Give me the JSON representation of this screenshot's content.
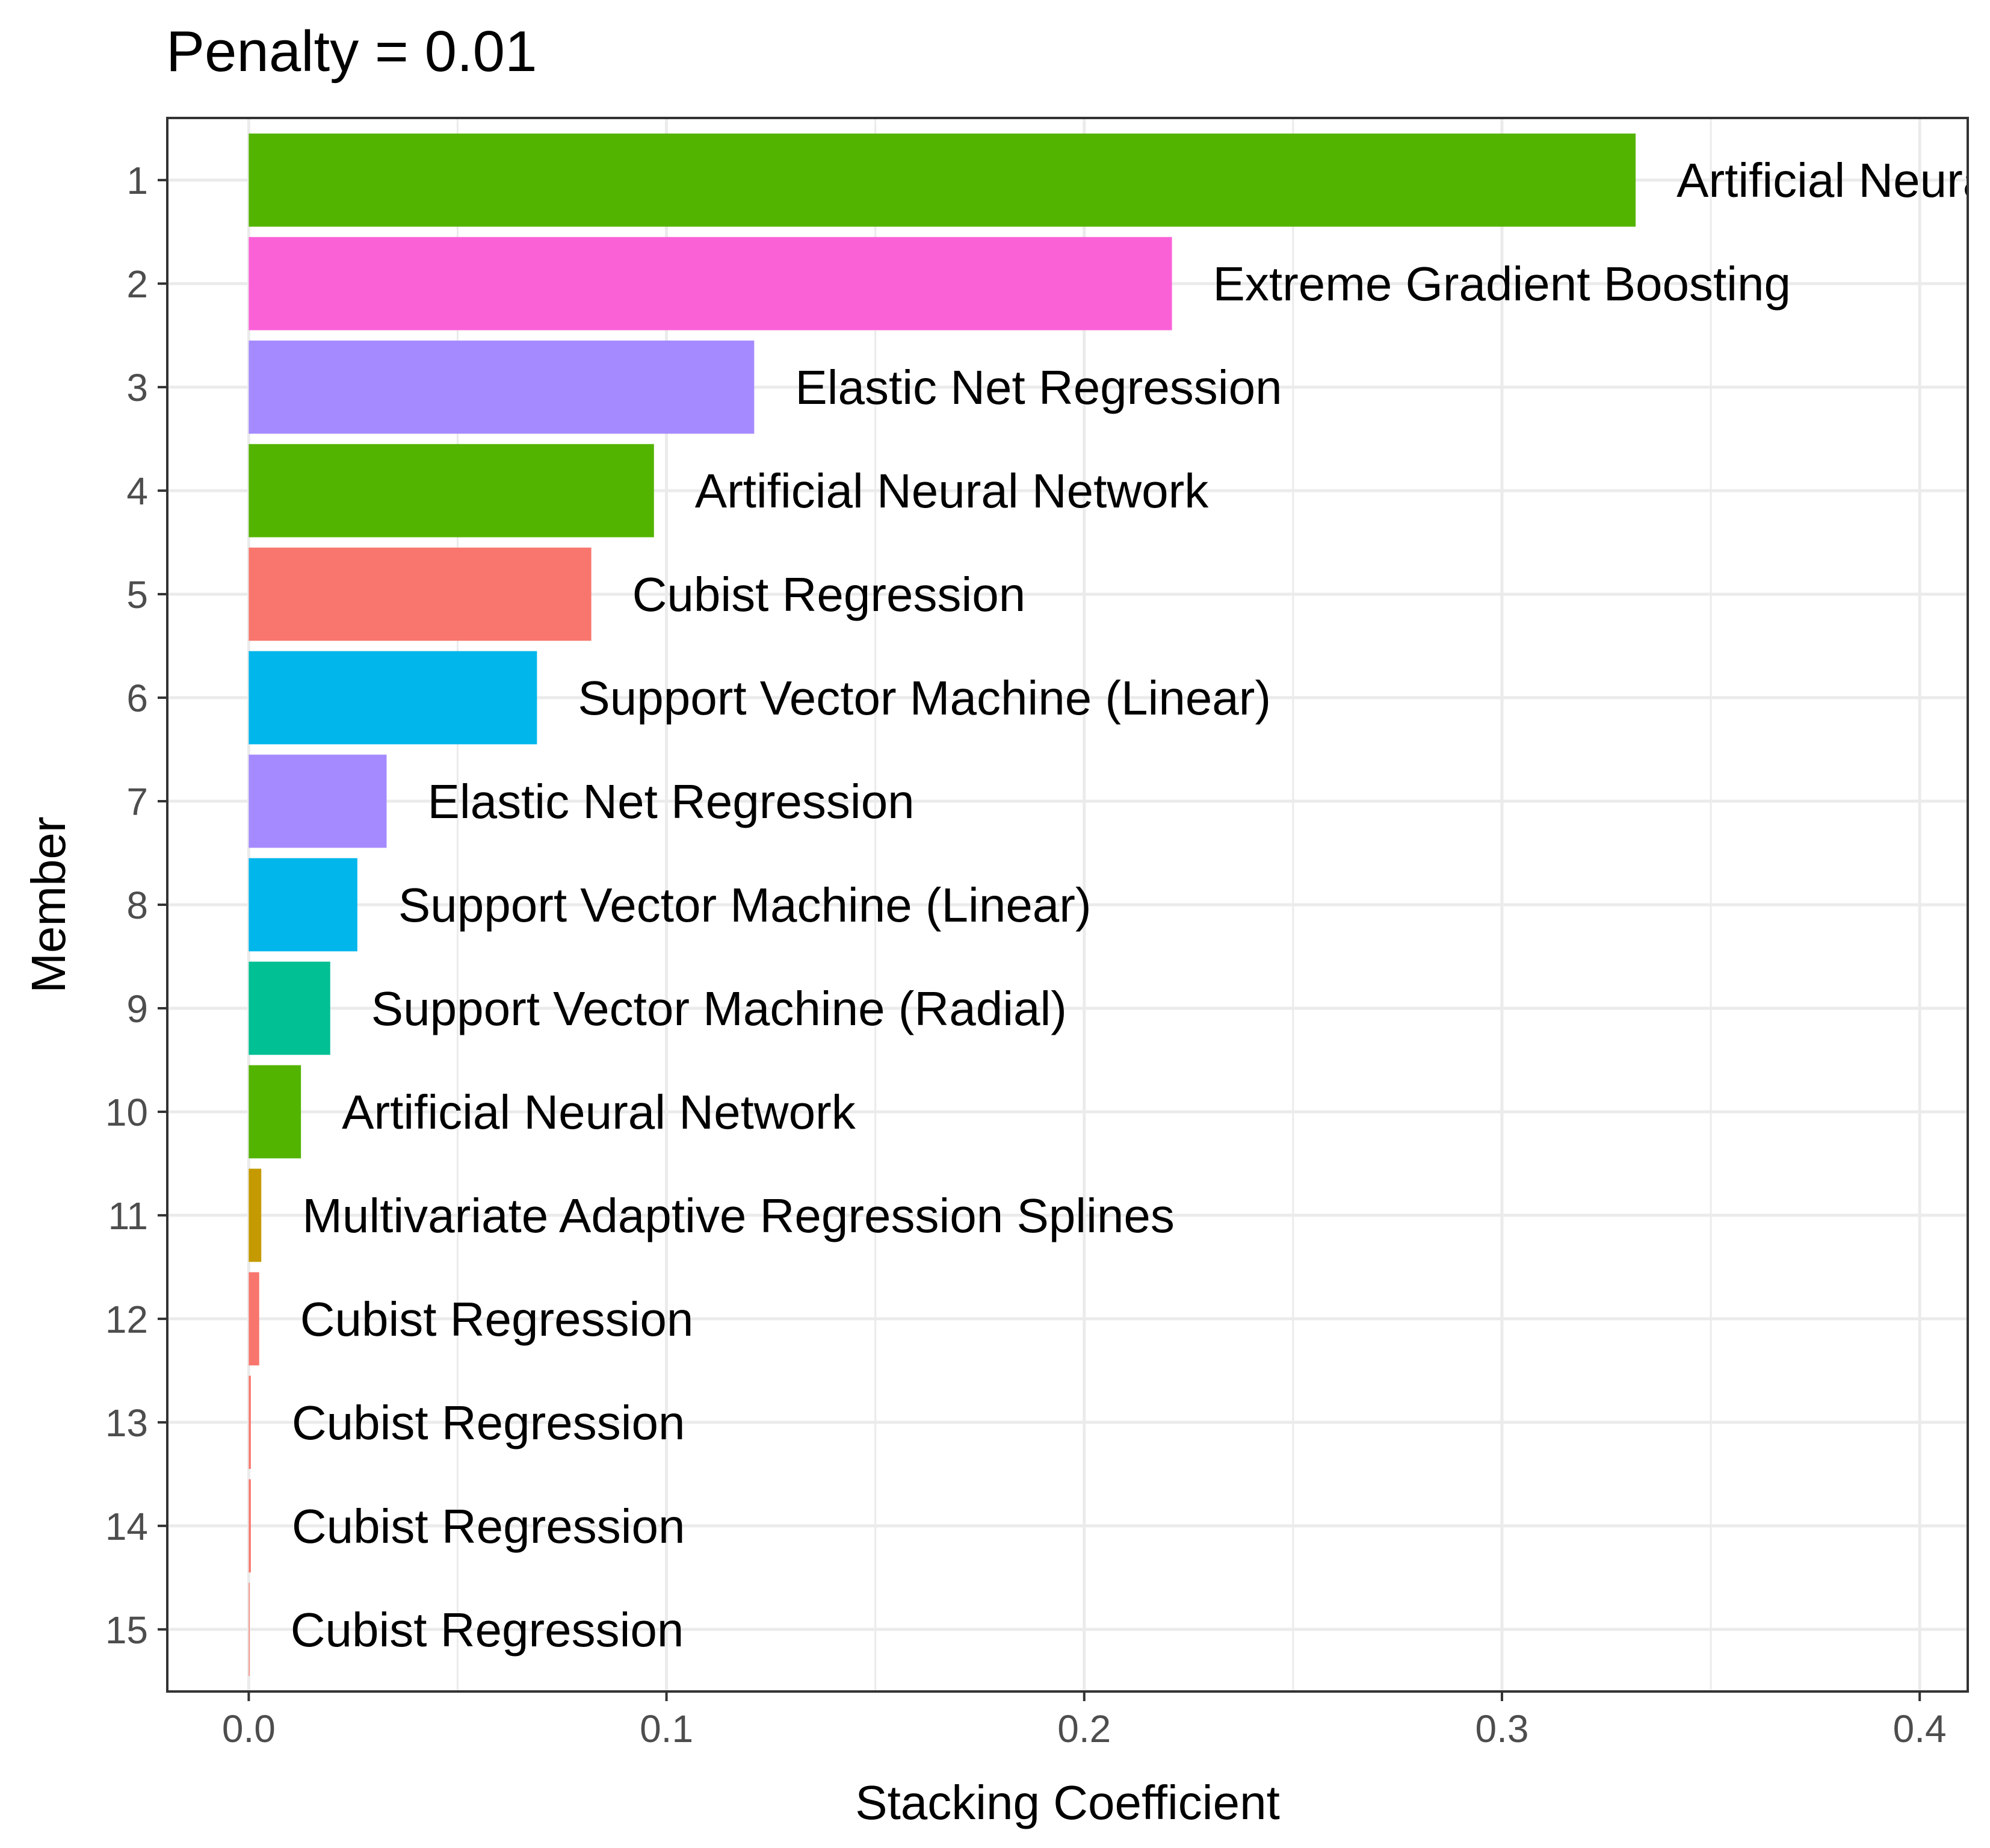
{
  "chart_data": {
    "type": "bar",
    "orientation": "horizontal",
    "title": "Penalty = 0.01",
    "xlabel": "Stacking Coefficient",
    "ylabel": "Member",
    "xlim": [
      -0.0195,
      0.4115
    ],
    "x_ticks": [
      0.0,
      0.1,
      0.2,
      0.3,
      0.4
    ],
    "x_tick_labels": [
      "0.0",
      "0.1",
      "0.2",
      "0.3",
      "0.4"
    ],
    "grid": true,
    "legend": "none",
    "colors": {
      "Artificial Neural Network": "#53B400",
      "Extreme Gradient Boosting": "#FB61D7",
      "Elastic Net Regression": "#A58AFF",
      "Cubist Regression": "#F8766D",
      "Support Vector Machine (Linear)": "#00B6EB",
      "Support Vector Machine (Radial)": "#00C094",
      "Multivariate Adaptive Regression Splines": "#C49A00"
    },
    "categories": [
      "1",
      "2",
      "3",
      "4",
      "5",
      "6",
      "7",
      "8",
      "9",
      "10",
      "11",
      "12",
      "13",
      "14",
      "15"
    ],
    "values": [
      0.332,
      0.221,
      0.121,
      0.097,
      0.082,
      0.069,
      0.033,
      0.026,
      0.0195,
      0.0125,
      0.003,
      0.0025,
      0.0005,
      0.0005,
      0.0002
    ],
    "labels": [
      "Artificial Neural Network",
      "Extreme Gradient Boosting",
      "Elastic Net Regression",
      "Artificial Neural Network",
      "Cubist Regression",
      "Support Vector Machine (Linear)",
      "Elastic Net Regression",
      "Support Vector Machine (Linear)",
      "Support Vector Machine (Radial)",
      "Artificial Neural Network",
      "Multivariate Adaptive Regression Splines",
      "Cubist Regression",
      "Cubist Regression",
      "Cubist Regression",
      "Cubist Regression"
    ]
  }
}
